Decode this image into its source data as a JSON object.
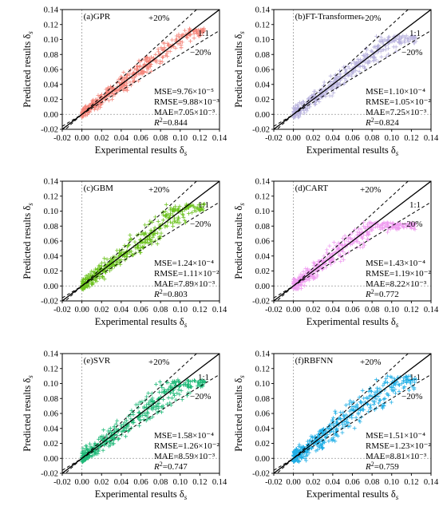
{
  "figure": {
    "panels": [
      {
        "title": "(a)GPR",
        "color": "#f4857a",
        "stats": [
          "MSE=9.76×10⁻⁵",
          "RMSE=9.88×10⁻³",
          "MAE=7.05×10⁻³",
          "R²=0.844"
        ],
        "spread": 0.01,
        "ymax": 0.115,
        "seed": 11
      },
      {
        "title": "(b)FT-Transformer",
        "color": "#b8b2dd",
        "stats": [
          "MSE=1.10×10⁻⁴",
          "RMSE=1.05×10⁻²",
          "MAE=7.25×10⁻³",
          "R²=0.824"
        ],
        "spread": 0.011,
        "ymax": 0.105,
        "seed": 23
      },
      {
        "title": "(c)GBM",
        "color": "#6cc21e",
        "stats": [
          "MSE=1.24×10⁻⁴",
          "RMSE=1.11×10⁻²",
          "MAE=7.89×10⁻³",
          "R²=0.803"
        ],
        "spread": 0.012,
        "ymax": 0.11,
        "seed": 37
      },
      {
        "title": "(d)CART",
        "color": "#ef9bf0",
        "stats": [
          "MSE=1.43×10⁻⁴",
          "RMSE=1.19×10⁻²",
          "MAE=8.22×10⁻³",
          "R²=0.772"
        ],
        "spread": 0.013,
        "ymax": 0.085,
        "seed": 41
      },
      {
        "title": "(e)SVR",
        "color": "#1fb978",
        "stats": [
          "MSE=1.58×10⁻⁴",
          "RMSE=1.26×10⁻²",
          "MAE=8.59×10⁻³",
          "R²=0.747"
        ],
        "spread": 0.014,
        "ymax": 0.105,
        "seed": 53
      },
      {
        "title": "(f)RBFNN",
        "color": "#1eaee6",
        "stats": [
          "MSE=1.51×10⁻⁴",
          "RMSE=1.23×10⁻²",
          "MAE=8.81×10⁻³",
          "R²=0.759"
        ],
        "spread": 0.014,
        "ymax": 0.11,
        "seed": 67
      }
    ],
    "xlabel": "Experimental results δs",
    "ylabel": "Predicted results δs",
    "annotations": {
      "plus20": "+20%",
      "minus20": "−20%",
      "one_to_one": "1:1"
    }
  },
  "chart_data": {
    "type": "scatter",
    "xlim": [
      -0.02,
      0.14
    ],
    "ylim": [
      -0.02,
      0.14
    ],
    "x_ticks": [
      "-0.02",
      "0.00",
      "0.02",
      "0.04",
      "0.06",
      "0.08",
      "0.10",
      "0.12",
      "0.14"
    ],
    "y_ticks": [
      "-0.02",
      "0.00",
      "0.02",
      "0.04",
      "0.06",
      "0.08",
      "0.10",
      "0.12",
      "0.14"
    ],
    "reference_lines": [
      {
        "label": "1:1",
        "slope": 1.0,
        "style": "solid"
      },
      {
        "label": "+20%",
        "slope": 1.2,
        "style": "dashed"
      },
      {
        "label": "−20%",
        "slope": 0.8,
        "style": "dashed"
      }
    ],
    "grid": false,
    "marker": "plus"
  }
}
